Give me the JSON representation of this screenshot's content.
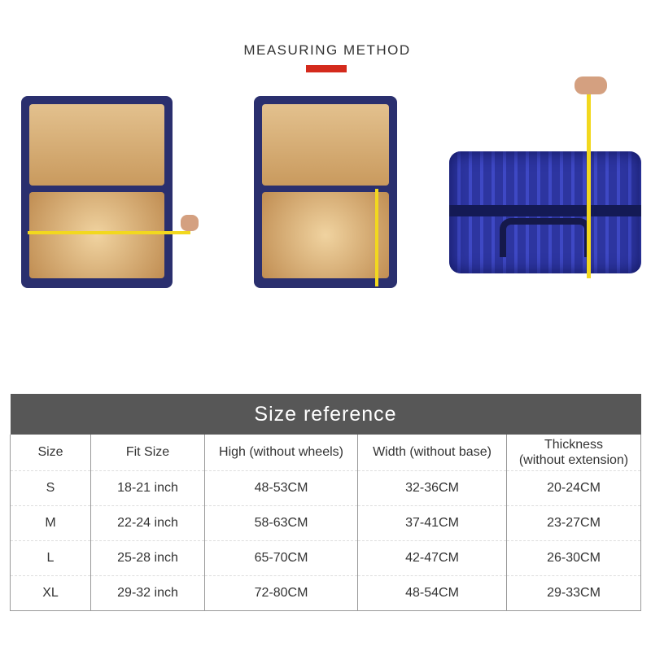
{
  "header": {
    "title": "MEASURING METHOD",
    "accent": "#d42a1c"
  },
  "images": [
    {
      "name": "open-suitcase-width-measure"
    },
    {
      "name": "open-suitcase-height-measure"
    },
    {
      "name": "closed-suitcase-thickness-measure"
    }
  ],
  "table": {
    "title": "Size reference",
    "columns": [
      "Size",
      "Fit Size",
      "High (without wheels)",
      "Width (without base)",
      "Thickness\n(without extension)"
    ],
    "rows": [
      [
        "S",
        "18-21 inch",
        "48-53CM",
        "32-36CM",
        "20-24CM"
      ],
      [
        "M",
        "22-24 inch",
        "58-63CM",
        "37-41CM",
        "23-27CM"
      ],
      [
        "L",
        "25-28 inch",
        "65-70CM",
        "42-47CM",
        "26-30CM"
      ],
      [
        "XL",
        "29-32 inch",
        "72-80CM",
        "48-54CM",
        "29-33CM"
      ]
    ]
  }
}
